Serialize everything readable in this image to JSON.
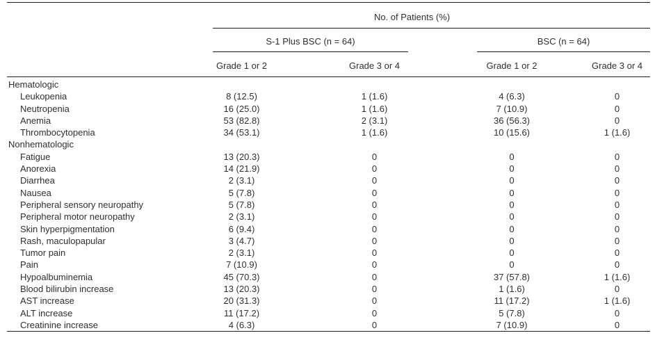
{
  "colors": {
    "rule": "#1c1c1c",
    "text": "#2f2f2f",
    "background": "#ffffff"
  },
  "table": {
    "spanner": "No. of Patients (%)",
    "groups": [
      {
        "label": "S-1 Plus BSC (n = 64)",
        "columns": [
          "Grade 1 or 2",
          "Grade 3 or 4"
        ]
      },
      {
        "label": "BSC (n = 64)",
        "columns": [
          "Grade 1 or 2",
          "Grade 3 or 4"
        ]
      }
    ],
    "sections": [
      {
        "label": "Hematologic",
        "rows": [
          {
            "label": "Leukopenia",
            "values": [
              "8 (12.5)",
              "1 (1.6)",
              "4 (6.3)",
              "0"
            ]
          },
          {
            "label": "Neutropenia",
            "values": [
              "16 (25.0)",
              "1 (1.6)",
              "7 (10.9)",
              "0"
            ]
          },
          {
            "label": "Anemia",
            "values": [
              "53 (82.8)",
              "2 (3.1)",
              "36 (56.3)",
              "0"
            ]
          },
          {
            "label": "Thrombocytopenia",
            "values": [
              "34 (53.1)",
              "1 (1.6)",
              "10 (15.6)",
              "1 (1.6)"
            ]
          }
        ]
      },
      {
        "label": "Nonhematologic",
        "rows": [
          {
            "label": "Fatigue",
            "values": [
              "13 (20.3)",
              "0",
              "0",
              "0"
            ]
          },
          {
            "label": "Anorexia",
            "values": [
              "14 (21.9)",
              "0",
              "0",
              "0"
            ]
          },
          {
            "label": "Diarrhea",
            "values": [
              "2 (3.1)",
              "0",
              "0",
              "0"
            ]
          },
          {
            "label": "Nausea",
            "values": [
              "5 (7.8)",
              "0",
              "0",
              "0"
            ]
          },
          {
            "label": "Peripheral sensory neuropathy",
            "values": [
              "5 (7.8)",
              "0",
              "0",
              "0"
            ]
          },
          {
            "label": "Peripheral motor neuropathy",
            "values": [
              "2 (3.1)",
              "0",
              "0",
              "0"
            ]
          },
          {
            "label": "Skin hyperpigmentation",
            "values": [
              "6 (9.4)",
              "0",
              "0",
              "0"
            ]
          },
          {
            "label": "Rash, maculopapular",
            "values": [
              "3 (4.7)",
              "0",
              "0",
              "0"
            ]
          },
          {
            "label": "Tumor pain",
            "values": [
              "2 (3.1)",
              "0",
              "0",
              "0"
            ]
          },
          {
            "label": "Pain",
            "values": [
              "7 (10.9)",
              "0",
              "0",
              "0"
            ]
          },
          {
            "label": "Hypoalbuminemia",
            "values": [
              "45 (70.3)",
              "0",
              "37 (57.8)",
              "1 (1.6)"
            ]
          },
          {
            "label": "Blood bilirubin increase",
            "values": [
              "13 (20.3)",
              "0",
              "1 (1.6)",
              "0"
            ]
          },
          {
            "label": "AST increase",
            "values": [
              "20 (31.3)",
              "0",
              "11 (17.2)",
              "1 (1.6)"
            ]
          },
          {
            "label": "ALT increase",
            "values": [
              "11 (17.2)",
              "0",
              "5 (7.8)",
              "0"
            ]
          },
          {
            "label": "Creatinine increase",
            "values": [
              "4 (6.3)",
              "0",
              "7 (10.9)",
              "0"
            ]
          }
        ]
      }
    ]
  }
}
